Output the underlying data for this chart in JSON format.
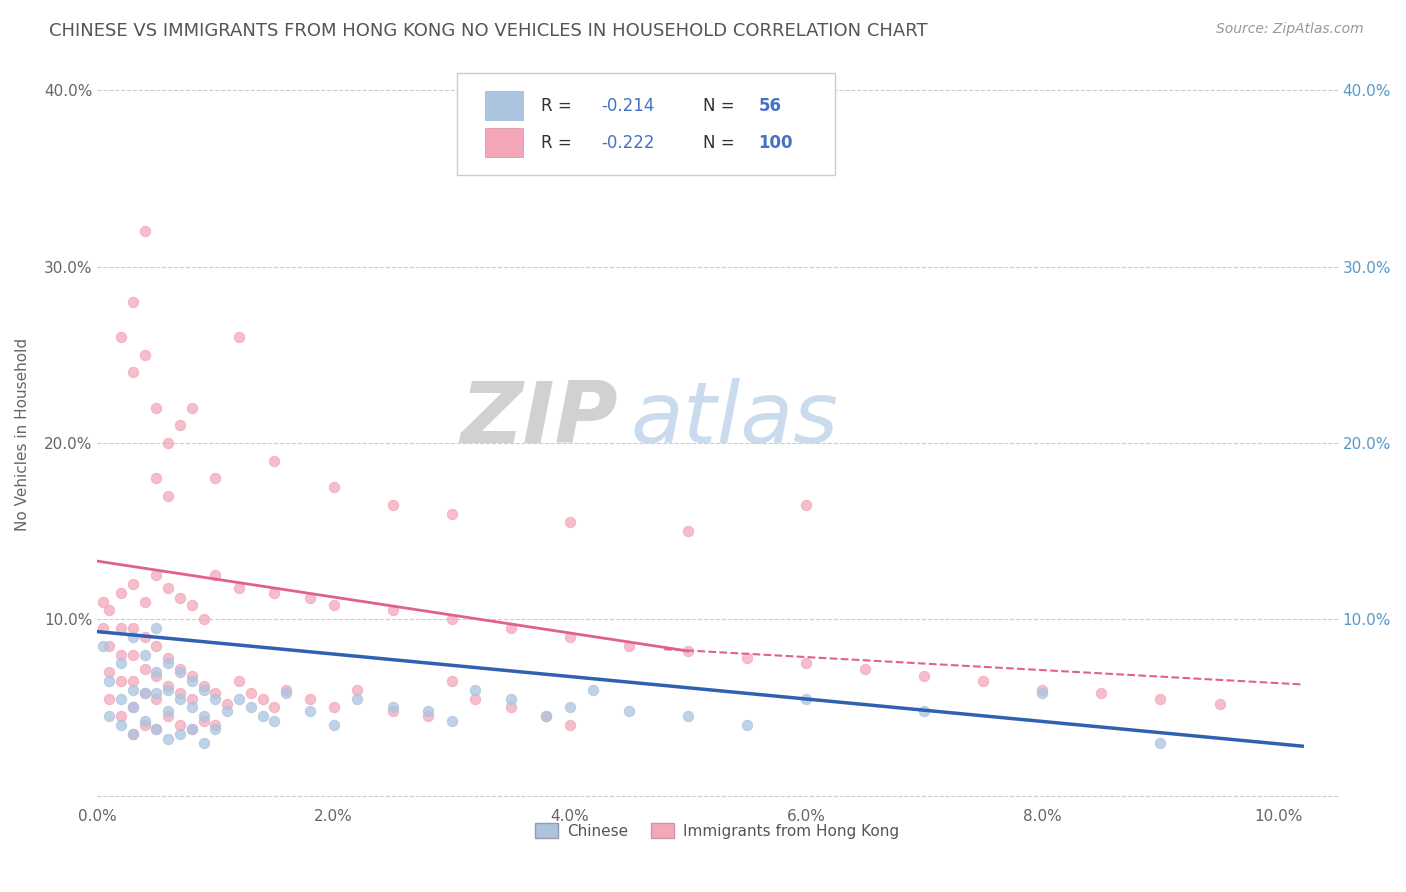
{
  "title": "CHINESE VS IMMIGRANTS FROM HONG KONG NO VEHICLES IN HOUSEHOLD CORRELATION CHART",
  "source": "Source: ZipAtlas.com",
  "ylabel": "No Vehicles in Household",
  "xlim": [
    0.0,
    0.105
  ],
  "ylim": [
    -0.005,
    0.415
  ],
  "xtick_vals": [
    0.0,
    0.02,
    0.04,
    0.06,
    0.08,
    0.1
  ],
  "xtick_labels": [
    "0.0%",
    "2.0%",
    "4.0%",
    "6.0%",
    "8.0%",
    "10.0%"
  ],
  "ytick_vals": [
    0.0,
    0.1,
    0.2,
    0.3,
    0.4
  ],
  "ytick_labels_left": [
    "",
    "10.0%",
    "20.0%",
    "30.0%",
    "40.0%"
  ],
  "ytick_labels_right": [
    "",
    "10.0%",
    "20.0%",
    "30.0%",
    "40.0%"
  ],
  "legend_r1": "-0.214",
  "legend_n1": "56",
  "legend_r2": "-0.222",
  "legend_n2": "100",
  "color_chinese": "#aac4e0",
  "color_hk": "#f4a7b9",
  "line_color_chinese": "#3060b0",
  "line_color_hk": "#e06090",
  "watermark_zip": "ZIP",
  "watermark_atlas": "atlas",
  "chinese_x": [
    0.0005,
    0.001,
    0.001,
    0.002,
    0.002,
    0.002,
    0.003,
    0.003,
    0.003,
    0.003,
    0.004,
    0.004,
    0.004,
    0.005,
    0.005,
    0.005,
    0.005,
    0.006,
    0.006,
    0.006,
    0.006,
    0.007,
    0.007,
    0.007,
    0.008,
    0.008,
    0.008,
    0.009,
    0.009,
    0.009,
    0.01,
    0.01,
    0.011,
    0.012,
    0.013,
    0.014,
    0.015,
    0.016,
    0.018,
    0.02,
    0.022,
    0.025,
    0.028,
    0.03,
    0.032,
    0.035,
    0.038,
    0.04,
    0.042,
    0.045,
    0.05,
    0.055,
    0.06,
    0.07,
    0.08,
    0.09
  ],
  "chinese_y": [
    0.085,
    0.065,
    0.045,
    0.075,
    0.055,
    0.04,
    0.09,
    0.06,
    0.05,
    0.035,
    0.08,
    0.058,
    0.042,
    0.095,
    0.07,
    0.058,
    0.038,
    0.075,
    0.06,
    0.048,
    0.032,
    0.07,
    0.055,
    0.035,
    0.065,
    0.05,
    0.038,
    0.06,
    0.045,
    0.03,
    0.055,
    0.038,
    0.048,
    0.055,
    0.05,
    0.045,
    0.042,
    0.058,
    0.048,
    0.04,
    0.055,
    0.05,
    0.048,
    0.042,
    0.06,
    0.055,
    0.045,
    0.05,
    0.06,
    0.048,
    0.045,
    0.04,
    0.055,
    0.048,
    0.058,
    0.03
  ],
  "hk_x": [
    0.0005,
    0.001,
    0.001,
    0.001,
    0.002,
    0.002,
    0.002,
    0.002,
    0.003,
    0.003,
    0.003,
    0.003,
    0.003,
    0.004,
    0.004,
    0.004,
    0.004,
    0.005,
    0.005,
    0.005,
    0.005,
    0.006,
    0.006,
    0.006,
    0.007,
    0.007,
    0.007,
    0.008,
    0.008,
    0.008,
    0.009,
    0.009,
    0.01,
    0.01,
    0.011,
    0.012,
    0.013,
    0.014,
    0.015,
    0.016,
    0.018,
    0.02,
    0.022,
    0.025,
    0.028,
    0.03,
    0.032,
    0.035,
    0.038,
    0.04,
    0.0005,
    0.001,
    0.002,
    0.003,
    0.004,
    0.005,
    0.006,
    0.007,
    0.008,
    0.009,
    0.01,
    0.012,
    0.015,
    0.018,
    0.02,
    0.025,
    0.03,
    0.035,
    0.04,
    0.045,
    0.05,
    0.055,
    0.06,
    0.065,
    0.07,
    0.075,
    0.08,
    0.085,
    0.09,
    0.095,
    0.002,
    0.003,
    0.004,
    0.003,
    0.004,
    0.005,
    0.006,
    0.005,
    0.006,
    0.007,
    0.008,
    0.01,
    0.015,
    0.012,
    0.02,
    0.025,
    0.03,
    0.04,
    0.05,
    0.06
  ],
  "hk_y": [
    0.095,
    0.085,
    0.07,
    0.055,
    0.095,
    0.08,
    0.065,
    0.045,
    0.095,
    0.08,
    0.065,
    0.05,
    0.035,
    0.09,
    0.072,
    0.058,
    0.04,
    0.085,
    0.068,
    0.055,
    0.038,
    0.078,
    0.062,
    0.045,
    0.072,
    0.058,
    0.04,
    0.068,
    0.055,
    0.038,
    0.062,
    0.042,
    0.058,
    0.04,
    0.052,
    0.065,
    0.058,
    0.055,
    0.05,
    0.06,
    0.055,
    0.05,
    0.06,
    0.048,
    0.045,
    0.065,
    0.055,
    0.05,
    0.045,
    0.04,
    0.11,
    0.105,
    0.115,
    0.12,
    0.11,
    0.125,
    0.118,
    0.112,
    0.108,
    0.1,
    0.125,
    0.118,
    0.115,
    0.112,
    0.108,
    0.105,
    0.1,
    0.095,
    0.09,
    0.085,
    0.082,
    0.078,
    0.075,
    0.072,
    0.068,
    0.065,
    0.06,
    0.058,
    0.055,
    0.052,
    0.26,
    0.28,
    0.32,
    0.24,
    0.25,
    0.22,
    0.2,
    0.18,
    0.17,
    0.21,
    0.22,
    0.18,
    0.19,
    0.26,
    0.175,
    0.165,
    0.16,
    0.155,
    0.15,
    0.165
  ]
}
